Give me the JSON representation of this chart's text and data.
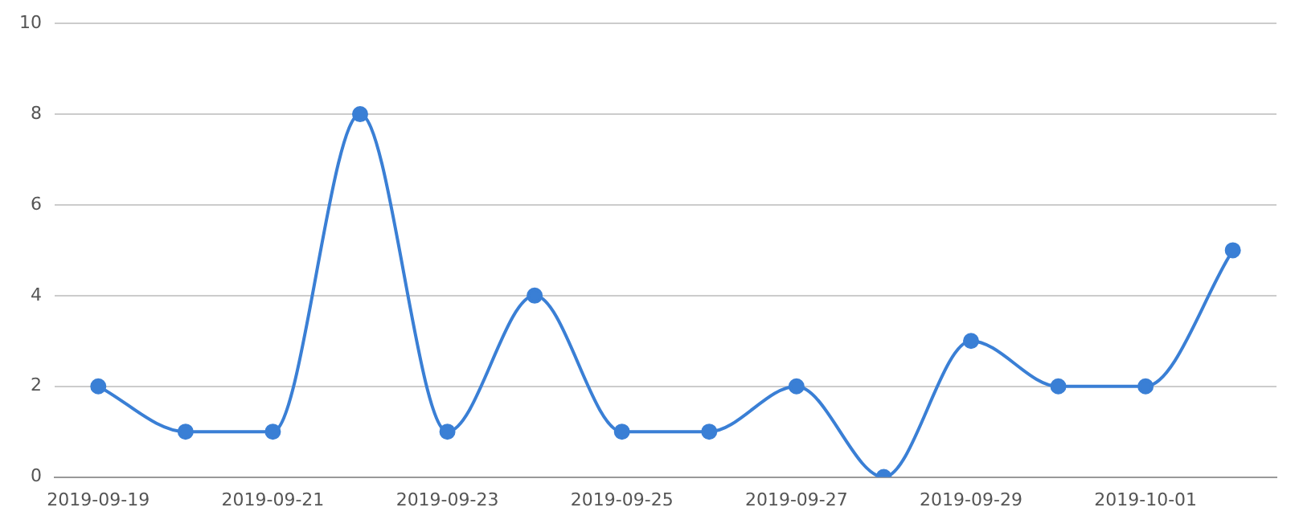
{
  "chart_data": {
    "type": "line",
    "categories": [
      "2019-09-19",
      null,
      "2019-09-21",
      null,
      "2019-09-23",
      null,
      "2019-09-25",
      null,
      "2019-09-27",
      null,
      "2019-09-29",
      null,
      "2019-10-01",
      null
    ],
    "series": [
      {
        "color": "#3a7fd5",
        "values": [
          2,
          1,
          1,
          8,
          1,
          4,
          1,
          1,
          2,
          0,
          3,
          2,
          2,
          5
        ]
      }
    ],
    "ylim": [
      0,
      10
    ],
    "yticks": [
      0,
      2,
      4,
      6,
      8,
      10
    ],
    "grid": "y",
    "marker": "circle",
    "line_style": "solid",
    "legend": false
  }
}
